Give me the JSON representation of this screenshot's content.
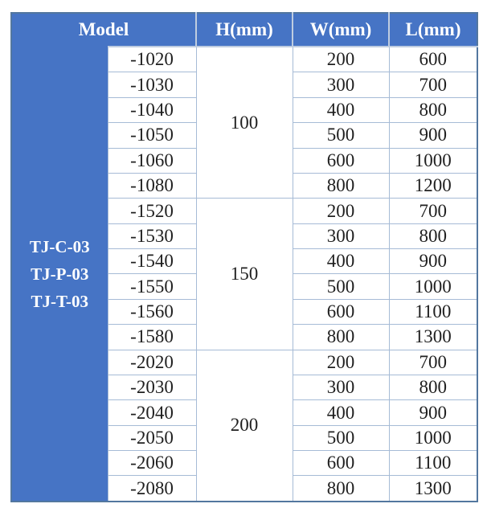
{
  "table": {
    "headers": [
      {
        "key": "model",
        "label": "Model"
      },
      {
        "key": "h",
        "label": "H(mm)"
      },
      {
        "key": "w",
        "label": "W(mm)"
      },
      {
        "key": "l",
        "label": "L(mm)"
      }
    ],
    "model_series": [
      "TJ-C-03",
      "TJ-P-03",
      "TJ-T-03"
    ],
    "groups": [
      {
        "h": "100",
        "rows": [
          {
            "suffix": "-1020",
            "w": "200",
            "l": "600"
          },
          {
            "suffix": "-1030",
            "w": "300",
            "l": "700"
          },
          {
            "suffix": "-1040",
            "w": "400",
            "l": "800"
          },
          {
            "suffix": "-1050",
            "w": "500",
            "l": "900"
          },
          {
            "suffix": "-1060",
            "w": "600",
            "l": "1000"
          },
          {
            "suffix": "-1080",
            "w": "800",
            "l": "1200"
          }
        ]
      },
      {
        "h": "150",
        "rows": [
          {
            "suffix": "-1520",
            "w": "200",
            "l": "700"
          },
          {
            "suffix": "-1530",
            "w": "300",
            "l": "800"
          },
          {
            "suffix": "-1540",
            "w": "400",
            "l": "900"
          },
          {
            "suffix": "-1550",
            "w": "500",
            "l": "1000"
          },
          {
            "suffix": "-1560",
            "w": "600",
            "l": "1100"
          },
          {
            "suffix": "-1580",
            "w": "800",
            "l": "1300"
          }
        ]
      },
      {
        "h": "200",
        "rows": [
          {
            "suffix": "-2020",
            "w": "200",
            "l": "700"
          },
          {
            "suffix": "-2030",
            "w": "300",
            "l": "800"
          },
          {
            "suffix": "-2040",
            "w": "400",
            "l": "900"
          },
          {
            "suffix": "-2050",
            "w": "500",
            "l": "1000"
          },
          {
            "suffix": "-2060",
            "w": "600",
            "l": "1100"
          },
          {
            "suffix": "-2080",
            "w": "800",
            "l": "1300"
          }
        ]
      }
    ]
  },
  "colors": {
    "header_blue": "#4674C5",
    "grid_line": "#A6BBD6",
    "outer_border": "#53779F",
    "header_divider": "#BFCDE0",
    "header_text": "#FFFFFF",
    "body_text": "#1F1F1F",
    "page_bg": "#FFFFFF"
  }
}
